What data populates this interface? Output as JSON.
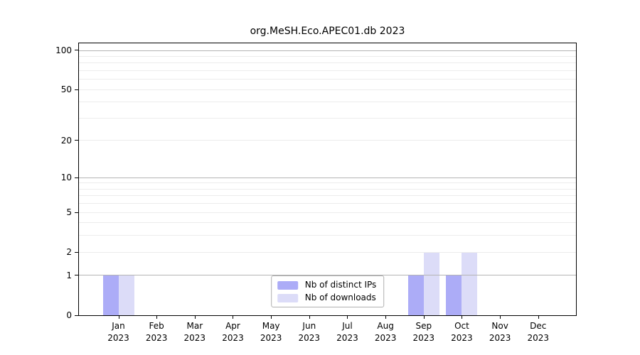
{
  "title": "org.MeSH.Eco.APEC01.db 2023",
  "colors": {
    "distinct_ips": "#acacf7",
    "downloads": "#dcdcf8",
    "grid_major": "#b4b4b4",
    "grid_minor": "#ececec",
    "axis": "#000000",
    "legend_border": "#b0b0b0"
  },
  "legend": {
    "items": [
      {
        "label": "Nb of distinct IPs"
      },
      {
        "label": "Nb of downloads"
      }
    ]
  },
  "chart_data": {
    "type": "bar",
    "title": "org.MeSH.Eco.APEC01.db 2023",
    "categories": [
      "Jan 2023",
      "Feb 2023",
      "Mar 2023",
      "Apr 2023",
      "May 2023",
      "Jun 2023",
      "Jul 2023",
      "Aug 2023",
      "Sep 2023",
      "Oct 2023",
      "Nov 2023",
      "Dec 2023"
    ],
    "series": [
      {
        "name": "Nb of distinct IPs",
        "color": "#acacf7",
        "values": [
          1,
          0,
          0,
          0,
          0,
          0,
          0,
          0,
          1,
          1,
          0,
          0
        ]
      },
      {
        "name": "Nb of downloads",
        "color": "#dcdcf8",
        "values": [
          1,
          0,
          0,
          0,
          0,
          0,
          0,
          0,
          2,
          2,
          0,
          0
        ]
      }
    ],
    "xlabel": "",
    "ylabel": "",
    "yscale": "log1p",
    "yticks": [
      0,
      1,
      2,
      5,
      10,
      20,
      50,
      100
    ],
    "ylim": [
      0,
      114
    ],
    "grid": true,
    "grid_major": [
      1,
      10,
      100
    ],
    "grid_minor": [
      2,
      3,
      4,
      5,
      6,
      7,
      8,
      9,
      20,
      30,
      40,
      50,
      60,
      70,
      80,
      90
    ],
    "legend_position": "lower center"
  }
}
